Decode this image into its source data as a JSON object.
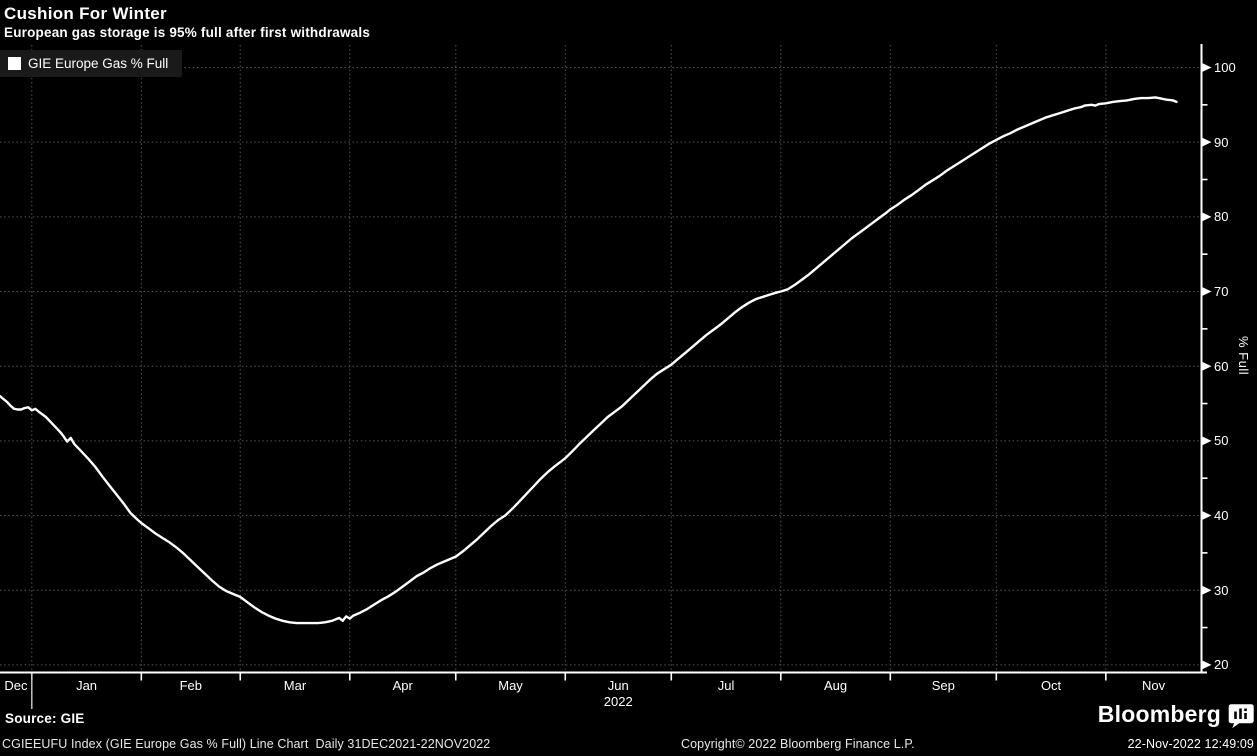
{
  "header": {
    "title": "Cushion For Winter",
    "subtitle": "European gas storage is 95% full after first withdrawals"
  },
  "legend": {
    "items": [
      {
        "label": "GIE Europe Gas % Full",
        "swatch_color": "#ffffff"
      }
    ]
  },
  "footer": {
    "source": "Source: GIE",
    "description": "CGIEEUFU Index (GIE Europe Gas % Full) Line Chart  Daily 31DEC2021-22NOV2022",
    "copyright": "Copyright© 2022 Bloomberg Finance L.P.",
    "timestamp": "22-Nov-2022 12:49:09",
    "brand": "Bloomberg",
    "brand_icon": "bloomberg-terminal-icon"
  },
  "colors": {
    "background": "#000000",
    "text": "#ffffff",
    "grid": "#555555",
    "axis": "#ffffff",
    "line": "#ffffff",
    "legend_bg": "#1a1a1a"
  },
  "chart_data": {
    "type": "line",
    "title": "Cushion For Winter",
    "subtitle": "European gas storage is 95% full after first withdrawals",
    "ylabel": "% Full",
    "ylim": [
      20,
      100
    ],
    "y_major_ticks": [
      20,
      30,
      40,
      50,
      60,
      70,
      80,
      90,
      100
    ],
    "y_minor_ticks": [
      25,
      35,
      45,
      55,
      65,
      75,
      85,
      95
    ],
    "grid": "dotted",
    "legend_position": "top-left",
    "x_unit": "day index from chart left edge; Jan 1 2022 = day 9; data range shown: 31DEC2021-22NOV2022",
    "x_axis_end_day": 340,
    "x_months": [
      {
        "label": "Dec",
        "start_day": 0
      },
      {
        "label": "Jan",
        "start_day": 9
      },
      {
        "label": "Feb",
        "start_day": 40
      },
      {
        "label": "Mar",
        "start_day": 68
      },
      {
        "label": "Apr",
        "start_day": 99
      },
      {
        "label": "May",
        "start_day": 129
      },
      {
        "label": "Jun",
        "start_day": 160
      },
      {
        "label": "Jul",
        "start_day": 190
      },
      {
        "label": "Aug",
        "start_day": 221
      },
      {
        "label": "Sep",
        "start_day": 252
      },
      {
        "label": "Oct",
        "start_day": 282
      },
      {
        "label": "Nov",
        "start_day": 313
      }
    ],
    "year_label": "2022",
    "year_label_month": "Jun",
    "series": [
      {
        "name": "GIE Europe Gas % Full",
        "color": "#ffffff",
        "points": [
          [
            0,
            56.0
          ],
          [
            1,
            55.6
          ],
          [
            2,
            55.2
          ],
          [
            3,
            54.7
          ],
          [
            4,
            54.3
          ],
          [
            5,
            54.2
          ],
          [
            6,
            54.2
          ],
          [
            7,
            54.4
          ],
          [
            8,
            54.5
          ],
          [
            9,
            54.1
          ],
          [
            10,
            54.3
          ],
          [
            11,
            53.9
          ],
          [
            13,
            53.2
          ],
          [
            15,
            52.2
          ],
          [
            17,
            51.2
          ],
          [
            18,
            50.6
          ],
          [
            19,
            49.9
          ],
          [
            20,
            50.4
          ],
          [
            21,
            49.6
          ],
          [
            23,
            48.6
          ],
          [
            25,
            47.6
          ],
          [
            27,
            46.5
          ],
          [
            29,
            45.2
          ],
          [
            31,
            44.0
          ],
          [
            33,
            42.8
          ],
          [
            35,
            41.6
          ],
          [
            37,
            40.3
          ],
          [
            39,
            39.4
          ],
          [
            40,
            39.0
          ],
          [
            42,
            38.3
          ],
          [
            44,
            37.6
          ],
          [
            46,
            37.0
          ],
          [
            48,
            36.4
          ],
          [
            50,
            35.7
          ],
          [
            52,
            34.9
          ],
          [
            54,
            34.0
          ],
          [
            56,
            33.1
          ],
          [
            58,
            32.2
          ],
          [
            60,
            31.3
          ],
          [
            62,
            30.5
          ],
          [
            64,
            29.9
          ],
          [
            66,
            29.5
          ],
          [
            68,
            29.1
          ],
          [
            70,
            28.4
          ],
          [
            72,
            27.7
          ],
          [
            74,
            27.1
          ],
          [
            76,
            26.6
          ],
          [
            78,
            26.2
          ],
          [
            80,
            25.9
          ],
          [
            82,
            25.7
          ],
          [
            84,
            25.6
          ],
          [
            86,
            25.6
          ],
          [
            88,
            25.6
          ],
          [
            90,
            25.6
          ],
          [
            92,
            25.7
          ],
          [
            94,
            25.9
          ],
          [
            96,
            26.3
          ],
          [
            97,
            25.9
          ],
          [
            98,
            26.5
          ],
          [
            99,
            26.2
          ],
          [
            100,
            26.6
          ],
          [
            102,
            27.0
          ],
          [
            104,
            27.5
          ],
          [
            106,
            28.1
          ],
          [
            108,
            28.7
          ],
          [
            110,
            29.2
          ],
          [
            112,
            29.8
          ],
          [
            114,
            30.5
          ],
          [
            116,
            31.2
          ],
          [
            118,
            31.9
          ],
          [
            120,
            32.4
          ],
          [
            122,
            33.0
          ],
          [
            124,
            33.5
          ],
          [
            126,
            33.9
          ],
          [
            128,
            34.3
          ],
          [
            129,
            34.5
          ],
          [
            131,
            35.2
          ],
          [
            133,
            36.0
          ],
          [
            135,
            36.8
          ],
          [
            137,
            37.7
          ],
          [
            139,
            38.6
          ],
          [
            141,
            39.4
          ],
          [
            143,
            40.0
          ],
          [
            145,
            40.9
          ],
          [
            147,
            41.9
          ],
          [
            149,
            42.9
          ],
          [
            151,
            43.9
          ],
          [
            153,
            44.9
          ],
          [
            155,
            45.8
          ],
          [
            157,
            46.6
          ],
          [
            159,
            47.3
          ],
          [
            160,
            47.7
          ],
          [
            162,
            48.6
          ],
          [
            164,
            49.6
          ],
          [
            166,
            50.5
          ],
          [
            168,
            51.4
          ],
          [
            170,
            52.3
          ],
          [
            172,
            53.2
          ],
          [
            174,
            53.9
          ],
          [
            176,
            54.6
          ],
          [
            178,
            55.5
          ],
          [
            180,
            56.4
          ],
          [
            182,
            57.3
          ],
          [
            184,
            58.2
          ],
          [
            186,
            59.0
          ],
          [
            188,
            59.6
          ],
          [
            190,
            60.2
          ],
          [
            192,
            61.0
          ],
          [
            194,
            61.8
          ],
          [
            196,
            62.6
          ],
          [
            198,
            63.4
          ],
          [
            200,
            64.2
          ],
          [
            202,
            64.9
          ],
          [
            204,
            65.6
          ],
          [
            206,
            66.4
          ],
          [
            208,
            67.2
          ],
          [
            210,
            67.9
          ],
          [
            212,
            68.5
          ],
          [
            214,
            69.0
          ],
          [
            216,
            69.3
          ],
          [
            218,
            69.6
          ],
          [
            220,
            69.9
          ],
          [
            221,
            70.0
          ],
          [
            223,
            70.3
          ],
          [
            225,
            70.9
          ],
          [
            227,
            71.6
          ],
          [
            229,
            72.3
          ],
          [
            231,
            73.1
          ],
          [
            233,
            73.9
          ],
          [
            235,
            74.7
          ],
          [
            237,
            75.5
          ],
          [
            239,
            76.3
          ],
          [
            241,
            77.1
          ],
          [
            243,
            77.8
          ],
          [
            245,
            78.5
          ],
          [
            247,
            79.2
          ],
          [
            249,
            79.9
          ],
          [
            251,
            80.6
          ],
          [
            252,
            81.0
          ],
          [
            254,
            81.6
          ],
          [
            256,
            82.3
          ],
          [
            258,
            82.9
          ],
          [
            260,
            83.6
          ],
          [
            262,
            84.3
          ],
          [
            264,
            84.9
          ],
          [
            266,
            85.5
          ],
          [
            268,
            86.2
          ],
          [
            270,
            86.8
          ],
          [
            272,
            87.4
          ],
          [
            274,
            88.0
          ],
          [
            276,
            88.6
          ],
          [
            278,
            89.2
          ],
          [
            280,
            89.8
          ],
          [
            282,
            90.3
          ],
          [
            284,
            90.8
          ],
          [
            286,
            91.2
          ],
          [
            288,
            91.7
          ],
          [
            290,
            92.1
          ],
          [
            292,
            92.5
          ],
          [
            294,
            92.9
          ],
          [
            296,
            93.3
          ],
          [
            298,
            93.6
          ],
          [
            300,
            93.9
          ],
          [
            302,
            94.2
          ],
          [
            304,
            94.5
          ],
          [
            306,
            94.7
          ],
          [
            307,
            94.9
          ],
          [
            309,
            95.0
          ],
          [
            310,
            94.9
          ],
          [
            311,
            95.1
          ],
          [
            313,
            95.2
          ],
          [
            315,
            95.4
          ],
          [
            317,
            95.5
          ],
          [
            319,
            95.6
          ],
          [
            321,
            95.8
          ],
          [
            323,
            95.9
          ],
          [
            325,
            95.9
          ],
          [
            327,
            96.0
          ],
          [
            328,
            95.9
          ],
          [
            330,
            95.7
          ],
          [
            332,
            95.6
          ],
          [
            333,
            95.4
          ]
        ]
      }
    ]
  }
}
